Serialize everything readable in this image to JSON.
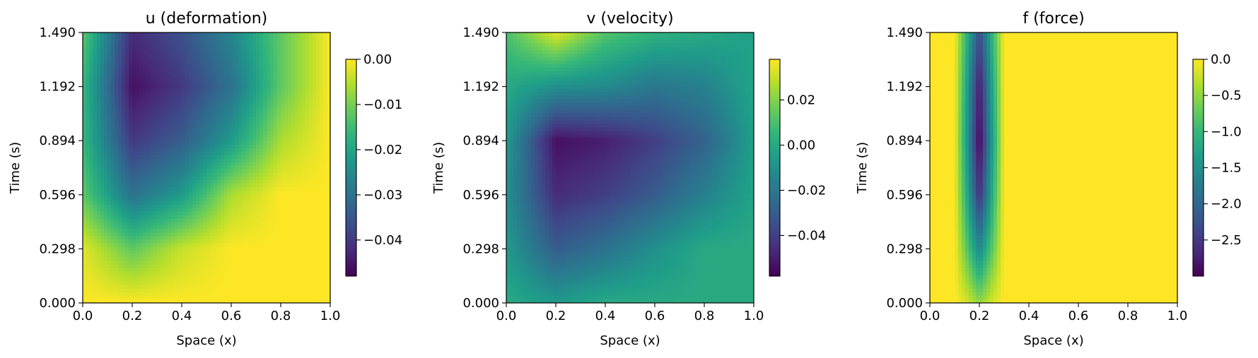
{
  "chart_data": [
    {
      "type": "heatmap",
      "title": "u (deformation)",
      "xlabel": "Space (x)",
      "ylabel": "Time (s)",
      "xlim": [
        0.0,
        1.0
      ],
      "ylim": [
        0.0,
        1.49
      ],
      "x_ticks": [
        "0.0",
        "0.2",
        "0.4",
        "0.6",
        "0.8",
        "1.0"
      ],
      "y_ticks": [
        "0.000",
        "0.298",
        "0.596",
        "0.894",
        "1.192",
        "1.490"
      ],
      "colormap": "viridis",
      "colorbar": {
        "range": [
          -0.048,
          0.0
        ],
        "ticks": [
          0.0,
          -0.01,
          -0.02,
          -0.03,
          -0.04
        ],
        "tick_labels": [
          "0.00",
          "−0.01",
          "−0.02",
          "−0.03",
          "−0.04"
        ]
      },
      "field": {
        "x": [
          0.0,
          0.2,
          0.4,
          0.6,
          0.8,
          1.0
        ],
        "t": [
          0.0,
          0.298,
          0.596,
          0.894,
          1.192,
          1.49
        ],
        "values": [
          [
            0.0,
            0.0,
            0.0,
            0.0,
            0.0,
            0.0
          ],
          [
            -0.002,
            -0.012,
            -0.004,
            0.0,
            0.0,
            0.0
          ],
          [
            -0.012,
            -0.03,
            -0.022,
            -0.006,
            0.0,
            0.0
          ],
          [
            -0.016,
            -0.04,
            -0.034,
            -0.022,
            -0.006,
            0.0
          ],
          [
            -0.016,
            -0.046,
            -0.04,
            -0.03,
            -0.012,
            0.0
          ],
          [
            -0.012,
            -0.042,
            -0.036,
            -0.026,
            -0.012,
            0.0
          ]
        ]
      }
    },
    {
      "type": "heatmap",
      "title": "v (velocity)",
      "xlabel": "Space (x)",
      "ylabel": "Time (s)",
      "xlim": [
        0.0,
        1.0
      ],
      "ylim": [
        0.0,
        1.49
      ],
      "x_ticks": [
        "0.0",
        "0.2",
        "0.4",
        "0.6",
        "0.8",
        "1.0"
      ],
      "y_ticks": [
        "0.000",
        "0.298",
        "0.596",
        "0.894",
        "1.192",
        "1.490"
      ],
      "colormap": "viridis",
      "colorbar": {
        "range": [
          -0.058,
          0.038
        ],
        "ticks": [
          0.02,
          0.0,
          -0.02,
          -0.04
        ],
        "tick_labels": [
          "0.02",
          "0.00",
          "−0.02",
          "−0.04"
        ]
      },
      "field": {
        "x": [
          0.0,
          0.2,
          0.4,
          0.6,
          0.8,
          1.0
        ],
        "t": [
          0.0,
          0.298,
          0.596,
          0.894,
          1.192,
          1.49
        ],
        "values": [
          [
            0.0,
            -0.006,
            0.0,
            0.0,
            0.0,
            0.0
          ],
          [
            -0.006,
            -0.03,
            -0.022,
            -0.01,
            0.0,
            0.0
          ],
          [
            -0.01,
            -0.046,
            -0.04,
            -0.03,
            -0.016,
            -0.002
          ],
          [
            -0.006,
            -0.054,
            -0.05,
            -0.04,
            -0.028,
            -0.004
          ],
          [
            0.0,
            -0.01,
            -0.012,
            -0.02,
            -0.016,
            -0.002
          ],
          [
            0.01,
            0.034,
            0.012,
            0.004,
            0.0,
            -0.004
          ]
        ]
      }
    },
    {
      "type": "heatmap",
      "title": "f (force)",
      "xlabel": "Space (x)",
      "ylabel": "Time (s)",
      "xlim": [
        0.0,
        1.0
      ],
      "ylim": [
        0.0,
        1.49
      ],
      "x_ticks": [
        "0.0",
        "0.2",
        "0.4",
        "0.6",
        "0.8",
        "1.0"
      ],
      "y_ticks": [
        "0.000",
        "0.298",
        "0.596",
        "0.894",
        "1.192",
        "1.490"
      ],
      "colormap": "viridis",
      "colorbar": {
        "range": [
          -3.0,
          0.0
        ],
        "ticks": [
          0.0,
          -0.5,
          -1.0,
          -1.5,
          -2.0,
          -2.5
        ],
        "tick_labels": [
          "0.0",
          "−0.5",
          "−1.0",
          "−1.5",
          "−2.0",
          "−2.5"
        ]
      },
      "field": {
        "x": [
          0.0,
          0.1,
          0.15,
          0.2,
          0.25,
          0.3,
          0.5,
          1.0
        ],
        "t": [
          0.0,
          0.298,
          0.596,
          0.894,
          1.192,
          1.49
        ],
        "values": [
          [
            0.0,
            0.0,
            -0.2,
            -0.5,
            -0.2,
            0.0,
            0.0,
            0.0
          ],
          [
            0.0,
            0.0,
            -0.8,
            -1.6,
            -0.8,
            0.0,
            0.0,
            0.0
          ],
          [
            0.0,
            0.0,
            -1.2,
            -2.6,
            -1.2,
            0.0,
            0.0,
            0.0
          ],
          [
            0.0,
            0.0,
            -1.4,
            -3.0,
            -1.4,
            0.0,
            0.0,
            0.0
          ],
          [
            0.0,
            0.0,
            -1.3,
            -2.8,
            -1.3,
            0.0,
            0.0,
            0.0
          ],
          [
            0.0,
            0.0,
            -1.1,
            -2.3,
            -1.1,
            0.0,
            0.0,
            0.0
          ]
        ]
      }
    }
  ]
}
